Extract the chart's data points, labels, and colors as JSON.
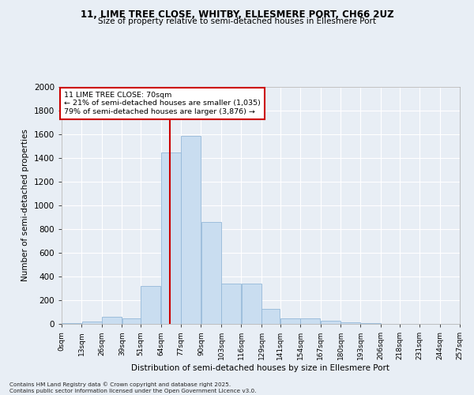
{
  "title1": "11, LIME TREE CLOSE, WHITBY, ELLESMERE PORT, CH66 2UZ",
  "title2": "Size of property relative to semi-detached houses in Ellesmere Port",
  "xlabel": "Distribution of semi-detached houses by size in Ellesmere Port",
  "ylabel": "Number of semi-detached properties",
  "footnote": "Contains HM Land Registry data © Crown copyright and database right 2025.\nContains public sector information licensed under the Open Government Licence v3.0.",
  "annotation_title": "11 LIME TREE CLOSE: 70sqm",
  "annotation_line1": "← 21% of semi-detached houses are smaller (1,035)",
  "annotation_line2": "79% of semi-detached houses are larger (3,876) →",
  "property_size": 70,
  "bin_edges": [
    0,
    13,
    26,
    39,
    51,
    64,
    77,
    90,
    103,
    116,
    129,
    141,
    154,
    167,
    180,
    193,
    206,
    218,
    231,
    244,
    257
  ],
  "bin_labels": [
    "0sqm",
    "13sqm",
    "26sqm",
    "39sqm",
    "51sqm",
    "64sqm",
    "77sqm",
    "90sqm",
    "103sqm",
    "116sqm",
    "129sqm",
    "141sqm",
    "154sqm",
    "167sqm",
    "180sqm",
    "193sqm",
    "206sqm",
    "218sqm",
    "231sqm",
    "244sqm",
    "257sqm"
  ],
  "counts": [
    10,
    20,
    60,
    50,
    320,
    1450,
    1590,
    860,
    340,
    340,
    130,
    50,
    45,
    30,
    15,
    5,
    2,
    1,
    0,
    0
  ],
  "bar_color": "#c9ddf0",
  "bar_edge_color": "#94b8d8",
  "vline_color": "#cc0000",
  "annotation_box_edge": "#cc0000",
  "ylim": [
    0,
    2000
  ],
  "yticks": [
    0,
    200,
    400,
    600,
    800,
    1000,
    1200,
    1400,
    1600,
    1800,
    2000
  ],
  "bg_color": "#e8eef5",
  "grid_color": "#ffffff",
  "plot_area_color": "#e8eef5"
}
